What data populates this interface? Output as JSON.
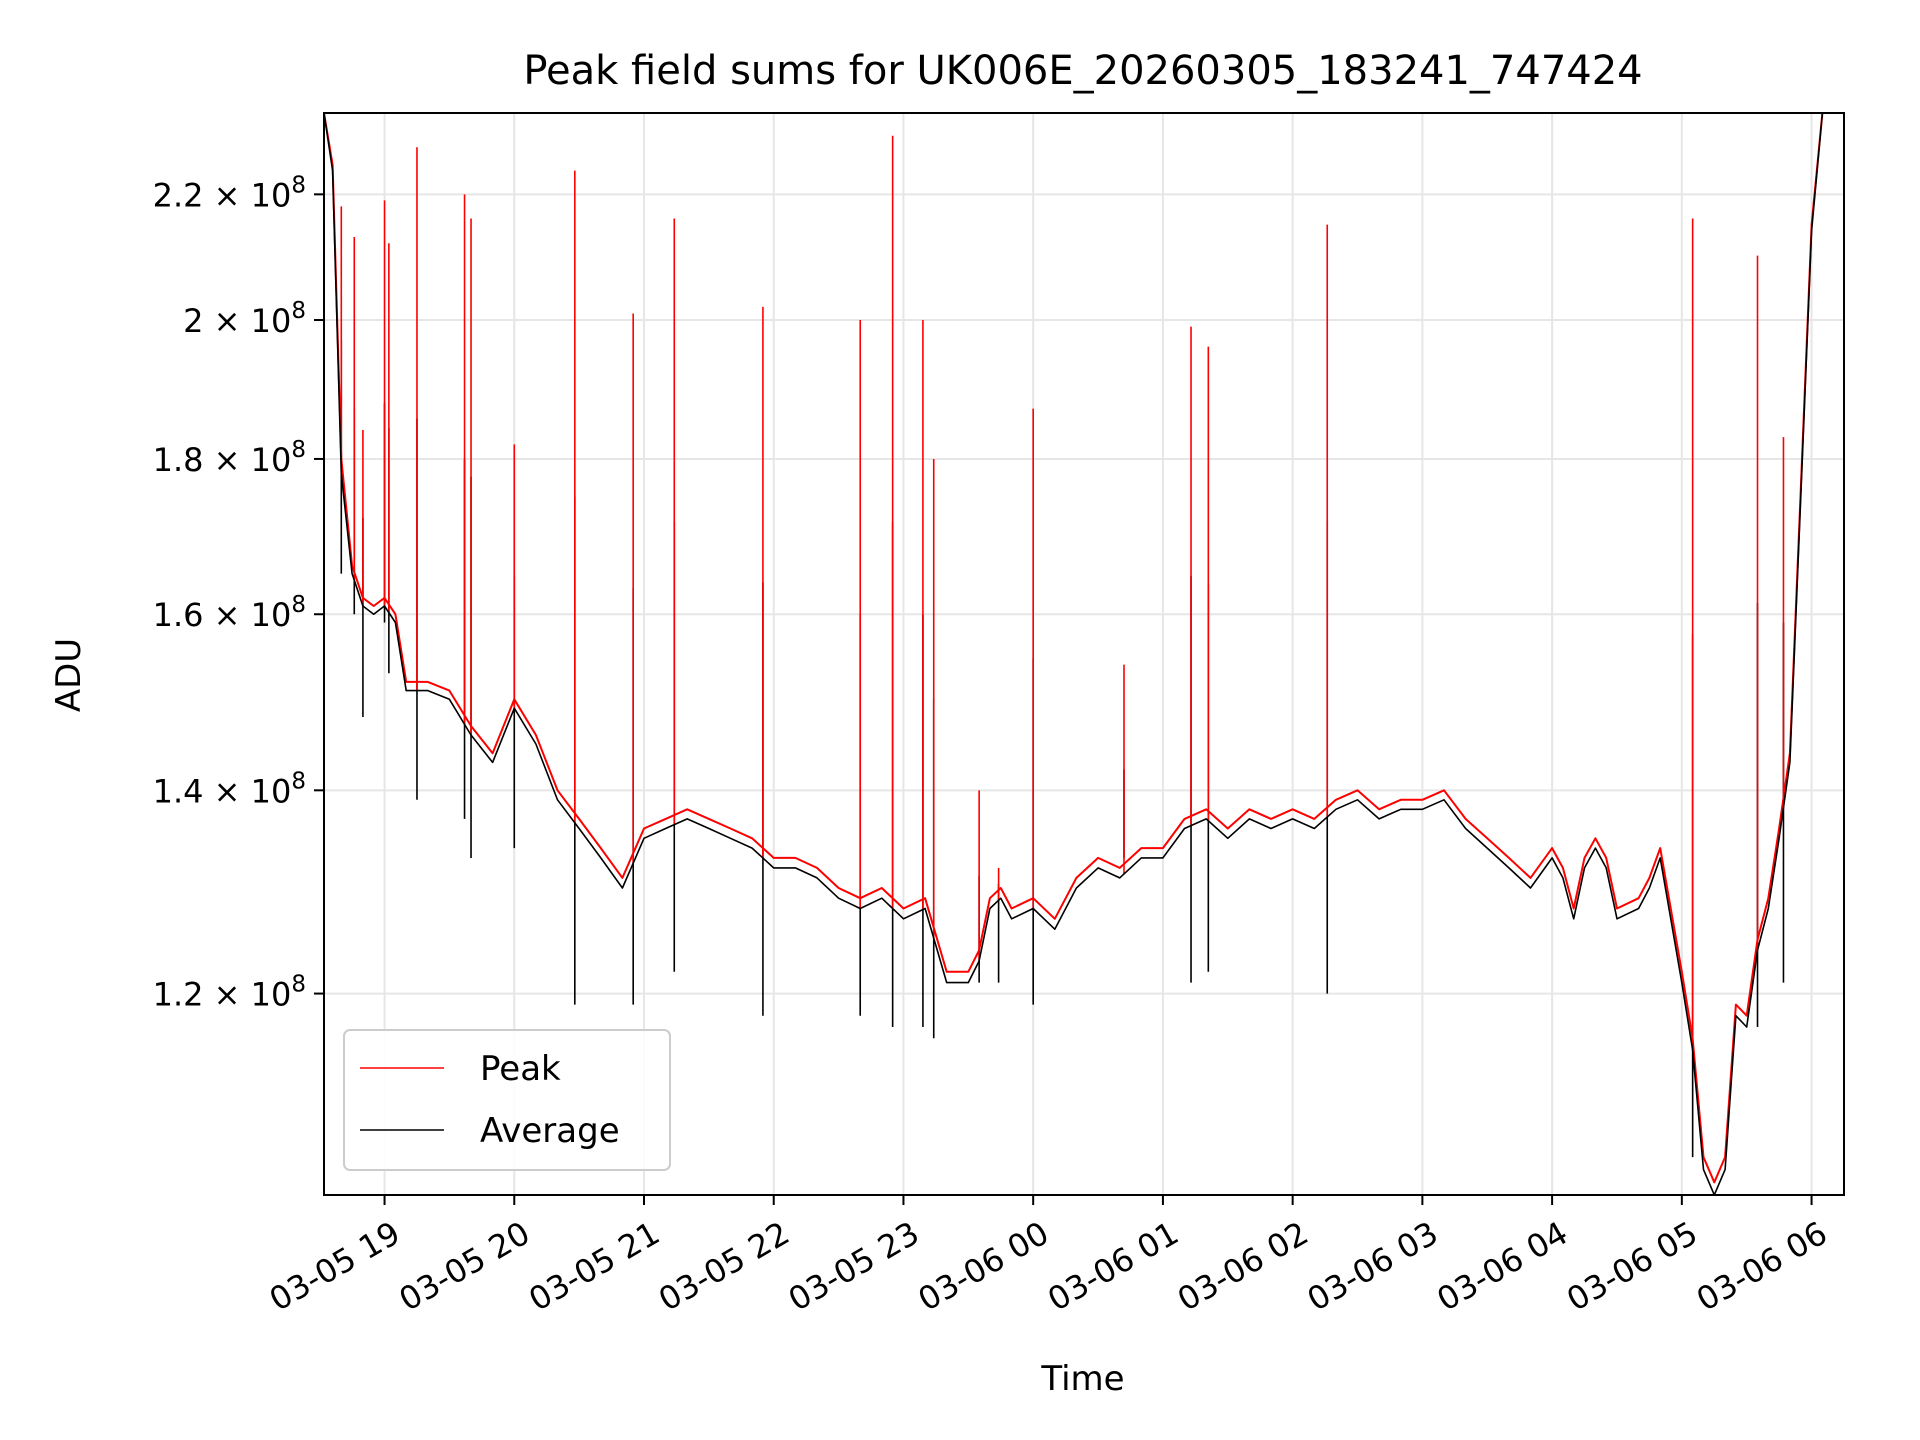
{
  "chart_data": {
    "type": "line",
    "title": "Peak field sums for UK006E_20260305_183241_747424",
    "xlabel": "Time",
    "ylabel": "ADU",
    "xlim": [
      "2026-03-05 18:32",
      "2026-03-06 06:15"
    ],
    "ylim": [
      103000000,
      234000000
    ],
    "y_scale": "log",
    "grid": true,
    "legend_position": "lower-left",
    "x_ticks": [
      {
        "t": "2026-03-05 19:00",
        "label": "03-05 19"
      },
      {
        "t": "2026-03-05 20:00",
        "label": "03-05 20"
      },
      {
        "t": "2026-03-05 21:00",
        "label": "03-05 21"
      },
      {
        "t": "2026-03-05 22:00",
        "label": "03-05 22"
      },
      {
        "t": "2026-03-05 23:00",
        "label": "03-05 23"
      },
      {
        "t": "2026-03-06 00:00",
        "label": "03-06 00"
      },
      {
        "t": "2026-03-06 01:00",
        "label": "03-06 01"
      },
      {
        "t": "2026-03-06 02:00",
        "label": "03-06 02"
      },
      {
        "t": "2026-03-06 03:00",
        "label": "03-06 03"
      },
      {
        "t": "2026-03-06 04:00",
        "label": "03-06 04"
      },
      {
        "t": "2026-03-06 05:00",
        "label": "03-06 05"
      },
      {
        "t": "2026-03-06 06:00",
        "label": "03-06 06"
      }
    ],
    "y_ticks": [
      {
        "value": 120000000,
        "mantissa": "1.2",
        "base": "10",
        "exp": "8"
      },
      {
        "value": 140000000,
        "mantissa": "1.4",
        "base": "10",
        "exp": "8"
      },
      {
        "value": 160000000,
        "mantissa": "1.6",
        "base": "10",
        "exp": "8"
      },
      {
        "value": 180000000,
        "mantissa": "1.8",
        "base": "10",
        "exp": "8"
      },
      {
        "value": 200000000,
        "mantissa": "2",
        "base": "10",
        "exp": "8"
      },
      {
        "value": 220000000,
        "mantissa": "2.2",
        "base": "10",
        "exp": "8"
      }
    ],
    "series": [
      {
        "name": "Peak",
        "color": "#ff0000",
        "x": [
          "2026-03-05 18:32",
          "2026-03-05 18:36",
          "2026-03-05 18:40",
          "2026-03-05 18:45",
          "2026-03-05 18:50",
          "2026-03-05 18:55",
          "2026-03-05 19:00",
          "2026-03-05 19:05",
          "2026-03-05 19:10",
          "2026-03-05 19:20",
          "2026-03-05 19:30",
          "2026-03-05 19:40",
          "2026-03-05 19:50",
          "2026-03-05 20:00",
          "2026-03-05 20:10",
          "2026-03-05 20:20",
          "2026-03-05 20:30",
          "2026-03-05 20:40",
          "2026-03-05 20:50",
          "2026-03-05 21:00",
          "2026-03-05 21:10",
          "2026-03-05 21:20",
          "2026-03-05 21:30",
          "2026-03-05 21:40",
          "2026-03-05 21:50",
          "2026-03-05 22:00",
          "2026-03-05 22:10",
          "2026-03-05 22:20",
          "2026-03-05 22:30",
          "2026-03-05 22:40",
          "2026-03-05 22:50",
          "2026-03-05 23:00",
          "2026-03-05 23:10",
          "2026-03-05 23:20",
          "2026-03-05 23:30",
          "2026-03-05 23:35",
          "2026-03-05 23:40",
          "2026-03-05 23:45",
          "2026-03-05 23:50",
          "2026-03-06 00:00",
          "2026-03-06 00:10",
          "2026-03-06 00:20",
          "2026-03-06 00:30",
          "2026-03-06 00:40",
          "2026-03-06 00:50",
          "2026-03-06 01:00",
          "2026-03-06 01:10",
          "2026-03-06 01:20",
          "2026-03-06 01:30",
          "2026-03-06 01:40",
          "2026-03-06 01:50",
          "2026-03-06 02:00",
          "2026-03-06 02:10",
          "2026-03-06 02:20",
          "2026-03-06 02:30",
          "2026-03-06 02:40",
          "2026-03-06 02:50",
          "2026-03-06 03:00",
          "2026-03-06 03:10",
          "2026-03-06 03:20",
          "2026-03-06 03:30",
          "2026-03-06 03:40",
          "2026-03-06 03:50",
          "2026-03-06 04:00",
          "2026-03-06 04:05",
          "2026-03-06 04:10",
          "2026-03-06 04:15",
          "2026-03-06 04:20",
          "2026-03-06 04:25",
          "2026-03-06 04:30",
          "2026-03-06 04:40",
          "2026-03-06 04:45",
          "2026-03-06 04:50",
          "2026-03-06 05:00",
          "2026-03-06 05:05",
          "2026-03-06 05:10",
          "2026-03-06 05:15",
          "2026-03-06 05:20",
          "2026-03-06 05:25",
          "2026-03-06 05:30",
          "2026-03-06 05:35",
          "2026-03-06 05:40",
          "2026-03-06 05:45",
          "2026-03-06 05:50",
          "2026-03-06 05:55",
          "2026-03-06 06:00",
          "2026-03-06 06:05"
        ],
        "y": [
          234000000,
          225000000,
          180000000,
          166000000,
          162000000,
          161000000,
          162000000,
          160000000,
          152000000,
          152000000,
          151000000,
          147000000,
          144000000,
          150000000,
          146000000,
          140000000,
          137000000,
          134000000,
          131000000,
          136000000,
          137000000,
          138000000,
          137000000,
          136000000,
          135000000,
          133000000,
          133000000,
          132000000,
          130000000,
          129000000,
          130000000,
          128000000,
          129000000,
          122000000,
          122000000,
          124000000,
          129000000,
          130000000,
          128000000,
          129000000,
          127000000,
          131000000,
          133000000,
          132000000,
          134000000,
          134000000,
          137000000,
          138000000,
          136000000,
          138000000,
          137000000,
          138000000,
          137000000,
          139000000,
          140000000,
          138000000,
          139000000,
          139000000,
          140000000,
          137000000,
          135000000,
          133000000,
          131000000,
          134000000,
          132000000,
          128000000,
          133000000,
          135000000,
          133000000,
          128000000,
          129000000,
          131000000,
          134000000,
          122000000,
          116000000,
          106000000,
          104000000,
          106000000,
          119000000,
          118000000,
          125000000,
          129000000,
          136000000,
          144000000,
          176000000,
          215000000,
          234000000
        ]
      },
      {
        "name": "Average",
        "color": "#000000",
        "x": [
          "2026-03-05 18:32",
          "2026-03-05 18:36",
          "2026-03-05 18:40",
          "2026-03-05 18:45",
          "2026-03-05 18:50",
          "2026-03-05 18:55",
          "2026-03-05 19:00",
          "2026-03-05 19:05",
          "2026-03-05 19:10",
          "2026-03-05 19:20",
          "2026-03-05 19:30",
          "2026-03-05 19:40",
          "2026-03-05 19:50",
          "2026-03-05 20:00",
          "2026-03-05 20:10",
          "2026-03-05 20:20",
          "2026-03-05 20:30",
          "2026-03-05 20:40",
          "2026-03-05 20:50",
          "2026-03-05 21:00",
          "2026-03-05 21:10",
          "2026-03-05 21:20",
          "2026-03-05 21:30",
          "2026-03-05 21:40",
          "2026-03-05 21:50",
          "2026-03-05 22:00",
          "2026-03-05 22:10",
          "2026-03-05 22:20",
          "2026-03-05 22:30",
          "2026-03-05 22:40",
          "2026-03-05 22:50",
          "2026-03-05 23:00",
          "2026-03-05 23:10",
          "2026-03-05 23:20",
          "2026-03-05 23:30",
          "2026-03-05 23:35",
          "2026-03-05 23:40",
          "2026-03-05 23:45",
          "2026-03-05 23:50",
          "2026-03-06 00:00",
          "2026-03-06 00:10",
          "2026-03-06 00:20",
          "2026-03-06 00:30",
          "2026-03-06 00:40",
          "2026-03-06 00:50",
          "2026-03-06 01:00",
          "2026-03-06 01:10",
          "2026-03-06 01:20",
          "2026-03-06 01:30",
          "2026-03-06 01:40",
          "2026-03-06 01:50",
          "2026-03-06 02:00",
          "2026-03-06 02:10",
          "2026-03-06 02:20",
          "2026-03-06 02:30",
          "2026-03-06 02:40",
          "2026-03-06 02:50",
          "2026-03-06 03:00",
          "2026-03-06 03:10",
          "2026-03-06 03:20",
          "2026-03-06 03:30",
          "2026-03-06 03:40",
          "2026-03-06 03:50",
          "2026-03-06 04:00",
          "2026-03-06 04:05",
          "2026-03-06 04:10",
          "2026-03-06 04:15",
          "2026-03-06 04:20",
          "2026-03-06 04:25",
          "2026-03-06 04:30",
          "2026-03-06 04:40",
          "2026-03-06 04:45",
          "2026-03-06 04:50",
          "2026-03-06 05:00",
          "2026-03-06 05:05",
          "2026-03-06 05:10",
          "2026-03-06 05:15",
          "2026-03-06 05:20",
          "2026-03-06 05:25",
          "2026-03-06 05:30",
          "2026-03-06 05:35",
          "2026-03-06 05:40",
          "2026-03-06 05:45",
          "2026-03-06 05:50",
          "2026-03-06 05:55",
          "2026-03-06 06:00",
          "2026-03-06 06:05"
        ],
        "y": [
          234000000,
          224000000,
          178000000,
          165000000,
          161000000,
          160000000,
          161000000,
          159000000,
          151000000,
          151000000,
          150000000,
          146000000,
          143000000,
          149000000,
          145000000,
          139000000,
          136000000,
          133000000,
          130000000,
          135000000,
          136000000,
          137000000,
          136000000,
          135000000,
          134000000,
          132000000,
          132000000,
          131000000,
          129000000,
          128000000,
          129000000,
          127000000,
          128000000,
          121000000,
          121000000,
          123000000,
          128000000,
          129000000,
          127000000,
          128000000,
          126000000,
          130000000,
          132000000,
          131000000,
          133000000,
          133000000,
          136000000,
          137000000,
          135000000,
          137000000,
          136000000,
          137000000,
          136000000,
          138000000,
          139000000,
          137000000,
          138000000,
          138000000,
          139000000,
          136000000,
          134000000,
          132000000,
          130000000,
          133000000,
          131000000,
          127000000,
          132000000,
          134000000,
          132000000,
          127000000,
          128000000,
          130000000,
          133000000,
          121000000,
          115000000,
          105000000,
          103000000,
          105000000,
          118000000,
          117000000,
          124000000,
          128000000,
          135000000,
          143000000,
          175000000,
          214000000,
          234000000
        ]
      }
    ],
    "spikes": [
      {
        "x": "2026-03-05 18:40",
        "peak": 218000000,
        "avg_low": 165000000
      },
      {
        "x": "2026-03-05 18:46",
        "peak": 213000000,
        "avg_low": 160000000
      },
      {
        "x": "2026-03-05 18:50",
        "peak": 184000000,
        "avg_low": 148000000
      },
      {
        "x": "2026-03-05 19:00",
        "peak": 219000000,
        "avg_low": 159000000
      },
      {
        "x": "2026-03-05 19:02",
        "peak": 212000000,
        "avg_low": 153000000
      },
      {
        "x": "2026-03-05 19:15",
        "peak": 228000000,
        "avg_low": 139000000
      },
      {
        "x": "2026-03-05 19:37",
        "peak": 220000000,
        "avg_low": 137000000
      },
      {
        "x": "2026-03-05 19:40",
        "peak": 216000000,
        "avg_low": 133000000
      },
      {
        "x": "2026-03-05 20:00",
        "peak": 182000000,
        "avg_low": 134000000
      },
      {
        "x": "2026-03-05 20:28",
        "peak": 224000000,
        "avg_low": 119000000
      },
      {
        "x": "2026-03-05 20:55",
        "peak": 201000000,
        "avg_low": 119000000
      },
      {
        "x": "2026-03-05 21:14",
        "peak": 216000000,
        "avg_low": 122000000
      },
      {
        "x": "2026-03-05 21:55",
        "peak": 202000000,
        "avg_low": 118000000
      },
      {
        "x": "2026-03-05 22:40",
        "peak": 200000000,
        "avg_low": 118000000
      },
      {
        "x": "2026-03-05 22:55",
        "peak": 230000000,
        "avg_low": 117000000
      },
      {
        "x": "2026-03-05 23:09",
        "peak": 200000000,
        "avg_low": 117000000
      },
      {
        "x": "2026-03-05 23:14",
        "peak": 180000000,
        "avg_low": 116000000
      },
      {
        "x": "2026-03-05 23:35",
        "peak": 140000000,
        "avg_low": 121000000
      },
      {
        "x": "2026-03-05 23:44",
        "peak": 132000000,
        "avg_low": 121000000
      },
      {
        "x": "2026-03-06 00:00",
        "peak": 187000000,
        "avg_low": 119000000
      },
      {
        "x": "2026-03-06 00:42",
        "peak": 154000000,
        "avg_low": 133000000
      },
      {
        "x": "2026-03-06 01:13",
        "peak": 199000000,
        "avg_low": 121000000
      },
      {
        "x": "2026-03-06 01:21",
        "peak": 196000000,
        "avg_low": 122000000
      },
      {
        "x": "2026-03-06 02:16",
        "peak": 215000000,
        "avg_low": 120000000
      },
      {
        "x": "2026-03-06 05:05",
        "peak": 216000000,
        "avg_low": 106000000
      },
      {
        "x": "2026-03-06 05:35",
        "peak": 210000000,
        "avg_low": 117000000
      },
      {
        "x": "2026-03-06 05:47",
        "peak": 183000000,
        "avg_low": 121000000
      }
    ]
  }
}
